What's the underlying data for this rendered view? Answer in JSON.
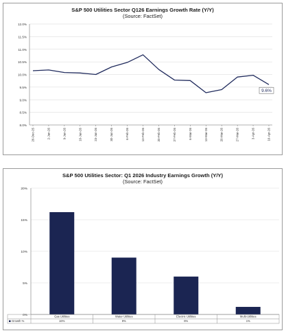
{
  "chart_data": [
    {
      "type": "line",
      "title": "S&P 500 Utilities Sector Q126 Earnings Growth Rate (Y/Y)",
      "subtitle": "(Source: FactSet)",
      "x": [
        "26-Dec-25",
        "2-Jan-26",
        "9-Jan-26",
        "16-Jan-26",
        "23-Jan-26",
        "30-Jan-26",
        "6-Feb-26",
        "13-Feb-26",
        "20-Feb-26",
        "27-Feb-26",
        "6-Mar-26",
        "13-Mar-26",
        "20-Mar-26",
        "27-Mar-26",
        "3-Apr-26",
        "10-Apr-26"
      ],
      "y": [
        10.15,
        10.18,
        10.08,
        10.06,
        10.0,
        10.3,
        10.48,
        10.78,
        10.2,
        9.78,
        9.76,
        9.28,
        9.4,
        9.9,
        9.97,
        9.6
      ],
      "y_ticks": [
        "8.0%",
        "8.5%",
        "9.0%",
        "9.5%",
        "10.0%",
        "10.5%",
        "11.0%",
        "11.5%",
        "12.0%"
      ],
      "ylim": [
        8.0,
        12.0
      ],
      "end_label": "9.6%",
      "line_color": "#1f2a5c",
      "grid": true
    },
    {
      "type": "bar",
      "title": "S&P 500 Utilities Sector: Q1 2026 Industry Earnings Growth (Y/Y)",
      "subtitle": "(Source: FactSet)",
      "categories": [
        "Gas Utilities",
        "Water Utilities",
        "Electric Utilities",
        "Multi-Utilities"
      ],
      "values": [
        16.2,
        9.0,
        6.0,
        1.2
      ],
      "table_values": [
        "16%",
        "9%",
        "6%",
        "1%"
      ],
      "series_name": "Growth %",
      "y_ticks": [
        "0%",
        "5%",
        "10%",
        "15%",
        "20%"
      ],
      "ylim": [
        0,
        20
      ],
      "bar_color": "#1b2552",
      "grid": true
    }
  ]
}
